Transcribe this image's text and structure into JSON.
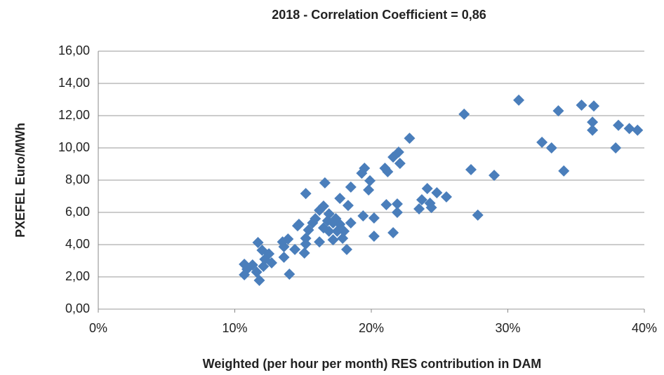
{
  "chart_data": {
    "type": "scatter",
    "title": "2018 - Correlation  Coefficient = 0,86",
    "x_label": "Weighted (per hour per month) RES contribution in DAM",
    "y_label": "PXEFEL Euro/MWh",
    "color": "#4a7ebb",
    "grid": true,
    "xlim": [
      0,
      40
    ],
    "xticks": [
      {
        "value": 0,
        "label": "0%"
      },
      {
        "value": 10,
        "label": "10%"
      },
      {
        "value": 20,
        "label": "20%"
      },
      {
        "value": 30,
        "label": "30%"
      },
      {
        "value": 40,
        "label": "40%"
      }
    ],
    "ylim": [
      0,
      16
    ],
    "yticks": [
      {
        "value": 0,
        "label": "0,00"
      },
      {
        "value": 2,
        "label": "2,00"
      },
      {
        "value": 4,
        "label": "4,00"
      },
      {
        "value": 6,
        "label": "6,00"
      },
      {
        "value": 8,
        "label": "8,00"
      },
      {
        "value": 10,
        "label": "10,00"
      },
      {
        "value": 12,
        "label": "12,00"
      },
      {
        "value": 14,
        "label": "14,00"
      },
      {
        "value": 16,
        "label": "16,00"
      }
    ],
    "x": [
      30.8,
      26.8,
      35.4,
      36.3,
      33.7,
      36.2,
      36.2,
      38.1,
      38.9,
      39.5,
      37.9,
      32.5,
      33.2,
      34.1,
      27.3,
      29.0,
      27.8,
      22.8,
      22.0,
      21.6,
      22.1,
      21.0,
      21.2,
      19.5,
      19.3,
      19.9,
      19.8,
      18.5,
      16.6,
      15.2,
      17.7,
      18.3,
      21.1,
      21.9,
      21.9,
      19.4,
      20.2,
      24.1,
      24.8,
      25.5,
      23.7,
      24.3,
      23.5,
      24.4,
      21.6,
      20.2,
      18.2,
      17.9,
      17.5,
      17.2,
      16.5,
      16.2,
      16.9,
      16.8,
      15.9,
      15.7,
      16.5,
      17.4,
      17.7,
      16.9,
      18.0,
      15.4,
      15.2,
      14.7,
      15.2,
      14.6,
      13.9,
      13.5,
      13.6,
      14.4,
      15.1,
      13.6,
      12.7,
      12.5,
      11.7,
      12.0,
      12.1,
      11.3,
      12.2,
      11.6,
      11.8,
      10.7,
      10.9,
      10.7,
      14.0,
      16.2,
      17.2,
      18.5
    ],
    "values": [
      12.96,
      12.09,
      12.65,
      12.6,
      12.3,
      11.6,
      11.1,
      11.4,
      11.2,
      11.1,
      10.0,
      10.35,
      10.0,
      8.57,
      8.65,
      8.3,
      5.83,
      10.6,
      9.74,
      9.43,
      9.04,
      8.74,
      8.52,
      8.74,
      8.43,
      7.96,
      7.39,
      7.57,
      7.83,
      7.17,
      6.87,
      6.43,
      6.48,
      6.52,
      6.0,
      5.78,
      5.65,
      7.48,
      7.22,
      6.96,
      6.78,
      6.57,
      6.22,
      6.3,
      4.74,
      4.52,
      3.7,
      4.39,
      4.83,
      5.35,
      6.39,
      6.13,
      5.91,
      5.48,
      5.61,
      5.35,
      5.04,
      5.61,
      5.26,
      4.83,
      4.83,
      4.91,
      4.39,
      5.26,
      4.04,
      5.17,
      4.35,
      4.17,
      3.87,
      3.7,
      3.48,
      3.22,
      2.87,
      3.43,
      4.13,
      3.65,
      2.65,
      2.74,
      3.09,
      2.3,
      1.78,
      2.78,
      2.48,
      2.13,
      2.17,
      4.17,
      4.3,
      5.35
    ]
  }
}
